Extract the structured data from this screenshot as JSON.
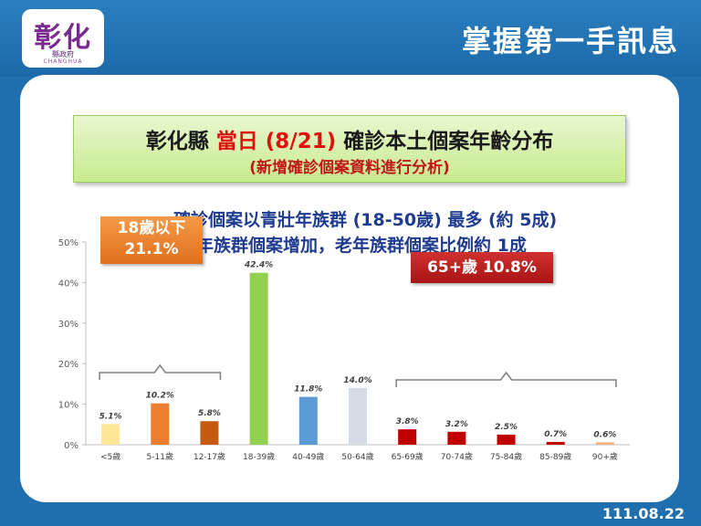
{
  "header": {
    "logo_main": "彰化",
    "logo_sub": "縣政府",
    "logo_en": "CHANGHUA",
    "title": "掌握第一手訊息"
  },
  "title_box": {
    "line1_a": "彰化縣",
    "line1_b": "當日 (8/21)",
    "line1_c": "確診本土個案年齡分布",
    "line2": "(新增確診個案資料進行分析)"
  },
  "subtitles": {
    "line1": "確診個案以青壯年族群 (18-50歲) 最多 (約 5成)",
    "line2": "中年族群個案增加，老年族群個案比例約 1成"
  },
  "callouts": {
    "youth_line1": "18歲以下",
    "youth_line2": "21.1%",
    "senior": "65+歲 10.8%"
  },
  "date": "111.08.22",
  "chart_data": {
    "type": "bar",
    "categories": [
      "<5歲",
      "5-11歲",
      "12-17歲",
      "18-39歲",
      "40-49歲",
      "50-64歲",
      "65-69歲",
      "70-74歲",
      "75-84歲",
      "85-89歲",
      "90+歲"
    ],
    "values": [
      5.1,
      10.2,
      5.8,
      42.4,
      11.8,
      14.0,
      3.8,
      3.2,
      2.5,
      0.7,
      0.6
    ],
    "data_labels": [
      "5.1%",
      "10.2%",
      "5.8%",
      "42.4%",
      "11.8%",
      "14.0%",
      "3.8%",
      "3.2%",
      "2.5%",
      "0.7%",
      "0.6%"
    ],
    "colors": [
      "#ffe699",
      "#ed7d31",
      "#c55a11",
      "#92d050",
      "#5b9bd5",
      "#d6dce5",
      "#c00000",
      "#c00000",
      "#c00000",
      "#c00000",
      "#f4b183"
    ],
    "ylim": [
      0,
      50
    ],
    "y_ticks": [
      0,
      10,
      20,
      30,
      40,
      50
    ],
    "y_tick_labels": [
      "0%",
      "10%",
      "20%",
      "30%",
      "40%",
      "50%"
    ],
    "grid": false,
    "legend": "none"
  }
}
